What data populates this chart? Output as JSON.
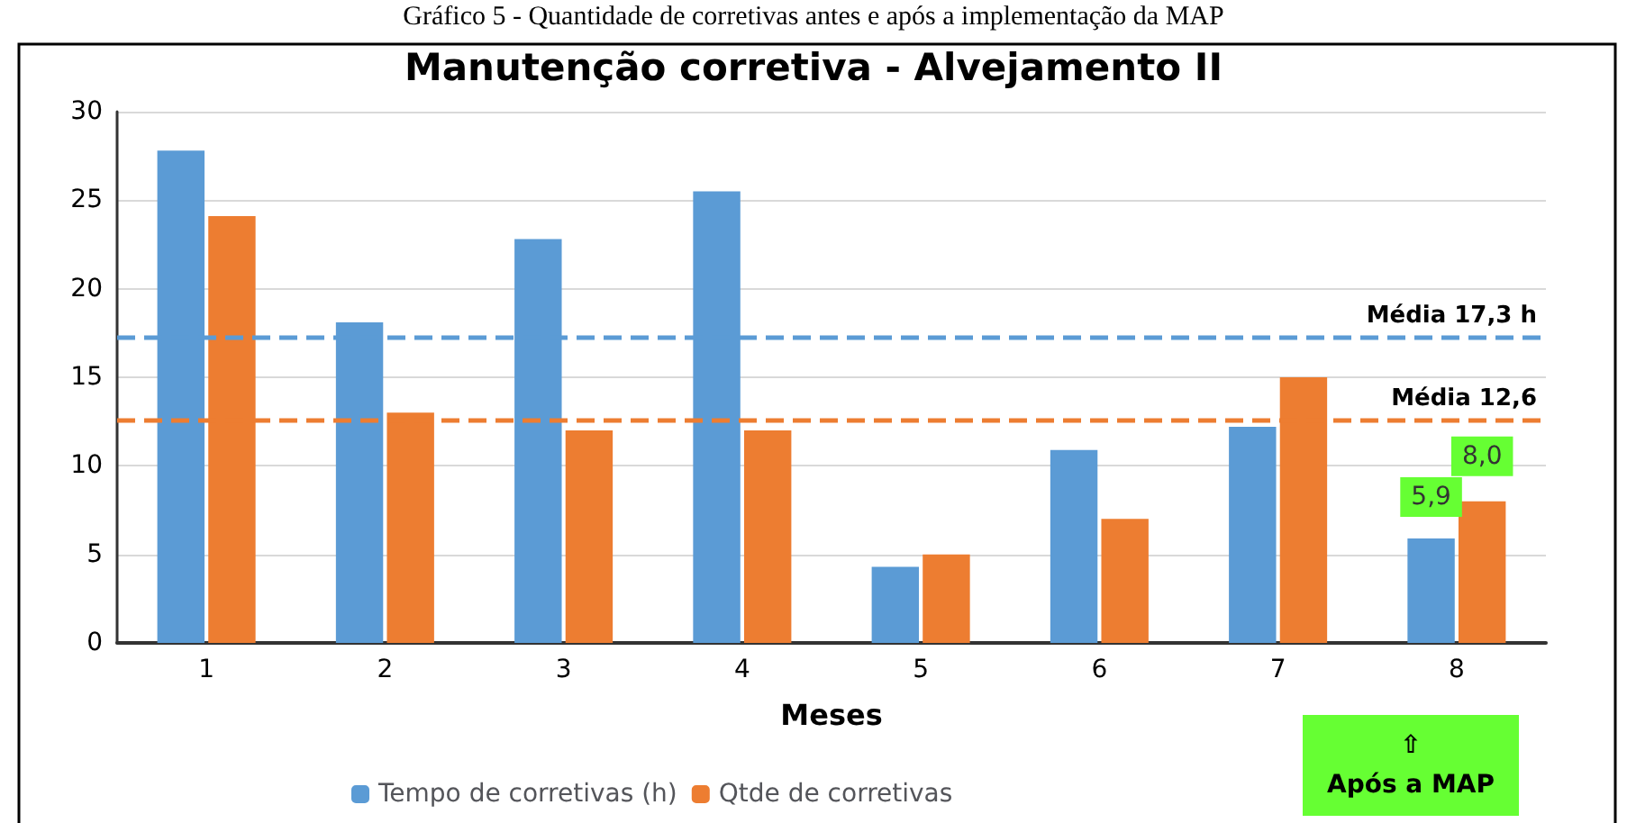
{
  "chart_data": {
    "type": "bar",
    "title": "Manutenção corretiva - Alvejamento II",
    "xlabel": "Meses",
    "categories": [
      "1",
      "2",
      "3",
      "4",
      "5",
      "6",
      "7",
      "8"
    ],
    "series": [
      {
        "name": "Tempo de corretivas (h)",
        "color": "#5b9bd5",
        "values": [
          27.8,
          18.1,
          22.8,
          25.5,
          4.3,
          10.9,
          12.2,
          5.9
        ],
        "value_labels": [
          null,
          null,
          null,
          null,
          null,
          null,
          null,
          "5,9"
        ]
      },
      {
        "name": "Qtde de corretivas",
        "color": "#ed7d31",
        "values": [
          24.1,
          13,
          12,
          12,
          5,
          7,
          15,
          8.0
        ],
        "value_labels": [
          null,
          null,
          null,
          null,
          null,
          null,
          null,
          "8,0"
        ]
      }
    ],
    "ylim": [
      0,
      30
    ],
    "yticks": [
      0,
      5,
      10,
      15,
      20,
      25,
      30
    ],
    "grid": "y",
    "legend": "bottom",
    "ref_lines": [
      {
        "axis": "y",
        "value": 17.3,
        "label": "Média 17,3 h",
        "color": "#5b9bd5",
        "line_style": "dashed"
      },
      {
        "axis": "y",
        "value": 12.6,
        "label": "Média 12,6",
        "color": "#ed7d31",
        "line_style": "dashed"
      }
    ],
    "annotations": [
      "Gráfico 5 - Quantidade de corretivas antes e após a implementação da MAP",
      "⇧\nApós a MAP"
    ]
  }
}
